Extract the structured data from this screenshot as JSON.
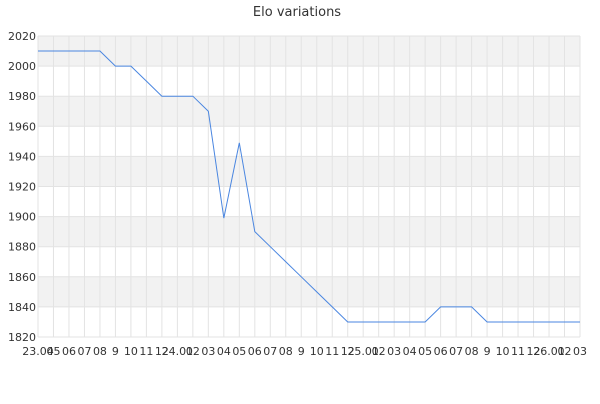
{
  "chart_data": {
    "type": "line",
    "title": "Elo variations",
    "xlabel": "",
    "ylabel": "",
    "ylim": [
      1820,
      2020
    ],
    "y_ticks": [
      1820,
      1840,
      1860,
      1880,
      1900,
      1920,
      1940,
      1960,
      1980,
      2000,
      2020
    ],
    "x_tick_labels": [
      "23.04",
      "05",
      "06",
      "07",
      "08",
      "9",
      "10",
      "11",
      "12",
      "24.01",
      "02",
      "03",
      "04",
      "05",
      "06",
      "07",
      "08",
      "9",
      "10",
      "11",
      "12",
      "25.01",
      "02",
      "03",
      "04",
      "05",
      "06",
      "07",
      "08",
      "9",
      "10",
      "11",
      "12",
      "26.01",
      "02",
      "03"
    ],
    "grid": true,
    "colors": {
      "series": "#4a86e0",
      "band": "#f2f2f2",
      "grid": "#e3e3e3"
    },
    "series": [
      {
        "values": [
          2010,
          2010,
          2010,
          2010,
          2010,
          2000,
          2000,
          1990,
          1980,
          1980,
          1980,
          1970,
          1899,
          1949,
          1890,
          1880,
          1870,
          1860,
          1850,
          1840,
          1830,
          1830,
          1830,
          1830,
          1830,
          1830,
          1840,
          1840,
          1840,
          1830,
          1830,
          1830,
          1830,
          1830,
          1830,
          1830
        ]
      }
    ]
  }
}
